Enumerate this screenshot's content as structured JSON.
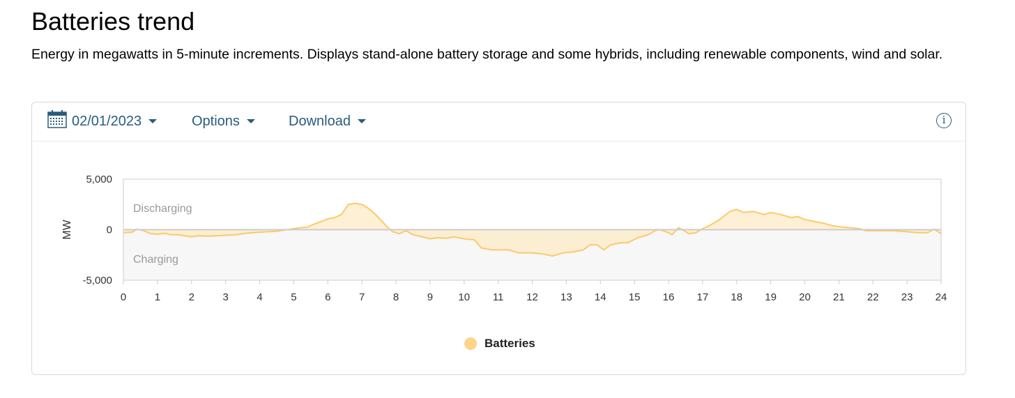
{
  "page": {
    "title": "Batteries trend",
    "description": "Energy in megawatts in 5-minute increments. Displays stand-alone battery storage and some hybrids, including renewable components, wind and solar."
  },
  "toolbar": {
    "date_label": "02/01/2023",
    "options_label": "Options",
    "download_label": "Download",
    "info_glyph": "i",
    "icons": [
      "calendar-icon",
      "chevron-down-icon",
      "info-icon"
    ]
  },
  "colors": {
    "series_line": "#fcc96b",
    "series_fill": "#fdebc6",
    "charging_band": "#f7f7f7",
    "accent": "#2a5b7e"
  },
  "chart_data": {
    "type": "area",
    "ylabel": "MW",
    "xlim": [
      0,
      24
    ],
    "ylim": [
      -5000,
      5000
    ],
    "x_ticks": [
      0,
      1,
      2,
      3,
      4,
      5,
      6,
      7,
      8,
      9,
      10,
      11,
      12,
      13,
      14,
      15,
      16,
      17,
      18,
      19,
      20,
      21,
      22,
      23,
      24
    ],
    "y_ticks": [
      {
        "value": 5000,
        "label": "5,000"
      },
      {
        "value": 0,
        "label": "0"
      },
      {
        "value": -5000,
        "label": "-5,000"
      }
    ],
    "annotations": {
      "upper": "Discharging",
      "lower": "Charging"
    },
    "legend_position": "bottom-center",
    "series": [
      {
        "name": "Batteries",
        "x": [
          0,
          0.25,
          0.4,
          0.6,
          0.8,
          1,
          1.2,
          1.4,
          1.6,
          2,
          2.2,
          2.5,
          3,
          3.3,
          3.6,
          4,
          4.5,
          4.9,
          5.2,
          5.4,
          5.6,
          5.8,
          5.95,
          6.05,
          6.2,
          6.4,
          6.6,
          6.8,
          7,
          7.2,
          7.4,
          7.6,
          7.75,
          7.9,
          8.1,
          8.3,
          8.5,
          8.7,
          9,
          9.2,
          9.5,
          9.7,
          10,
          10.3,
          10.5,
          10.8,
          11,
          11.3,
          11.6,
          12,
          12.3,
          12.6,
          12.9,
          13.2,
          13.5,
          13.7,
          13.9,
          14.1,
          14.3,
          14.6,
          14.8,
          15.1,
          15.4,
          15.6,
          15.7,
          15.85,
          16,
          16.1,
          16.3,
          16.6,
          16.8,
          17,
          17.2,
          17.5,
          17.8,
          18,
          18.2,
          18.5,
          18.8,
          19,
          19.3,
          19.6,
          19.8,
          20,
          20.3,
          20.6,
          20.8,
          21,
          21.3,
          21.6,
          21.8,
          22,
          22.3,
          22.6,
          23,
          23.3,
          23.6,
          23.8,
          24
        ],
        "values": [
          -300,
          -250,
          50,
          -100,
          -400,
          -450,
          -350,
          -500,
          -500,
          -700,
          -600,
          -650,
          -550,
          -500,
          -350,
          -250,
          -150,
          50,
          200,
          250,
          550,
          800,
          1000,
          1100,
          1200,
          1500,
          2500,
          2600,
          2500,
          2100,
          1500,
          800,
          250,
          -200,
          -400,
          -100,
          -500,
          -650,
          -900,
          -800,
          -850,
          -700,
          -900,
          -1000,
          -1800,
          -2000,
          -2000,
          -2000,
          -2300,
          -2300,
          -2400,
          -2600,
          -2300,
          -2200,
          -2000,
          -1500,
          -1500,
          -2000,
          -1500,
          -1300,
          -1300,
          -800,
          -500,
          -100,
          0,
          -100,
          -300,
          -500,
          200,
          -400,
          -300,
          100,
          400,
          1000,
          1800,
          2000,
          1700,
          1800,
          1500,
          1700,
          1500,
          1200,
          1300,
          1000,
          800,
          600,
          400,
          300,
          200,
          100,
          -100,
          -100,
          -100,
          -100,
          -200,
          -300,
          -300,
          50,
          -400
        ]
      }
    ]
  }
}
